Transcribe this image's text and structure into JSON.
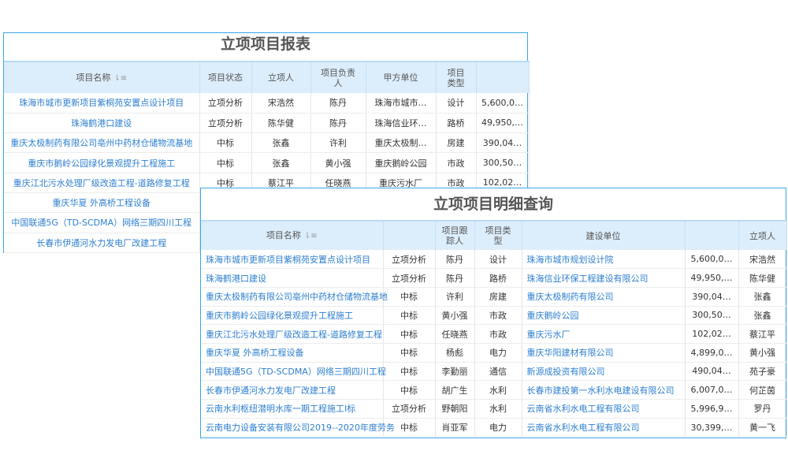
{
  "back": {
    "title": "立项项目报表",
    "headers": [
      "项目名称",
      "项目状态",
      "立项人",
      "项目负责人",
      "甲方单位",
      "项目类型",
      ""
    ],
    "rows": [
      [
        "珠海市城市更新项目紫桐苑安置点设计项目",
        "立项分析",
        "宋浩然",
        "陈丹",
        "珠海市城市…",
        "设计",
        "5,600,0…"
      ],
      [
        "珠海鹤港口建设",
        "立项分析",
        "陈华健",
        "陈丹",
        "珠海信业环…",
        "路桥",
        "49,950,…"
      ],
      [
        "重庆太极制药有限公司亳州中药材仓储物流基地",
        "中标",
        "张鑫",
        "许利",
        "重庆太极制…",
        "房建",
        "390,04…"
      ],
      [
        "重庆市鹅岭公园绿化景观提升工程施工",
        "中标",
        "张鑫",
        "黄小强",
        "重庆鹅岭公园",
        "市政",
        "300,50…"
      ],
      [
        "重庆江北污水处理厂级改造工程-道路修复工程",
        "中标",
        "蔡江平",
        "任晓燕",
        "重庆污水厂",
        "市政",
        "102,02…"
      ],
      [
        "重庆华夏 外高桥工程设备",
        "",
        "",
        "",
        "",
        "",
        ""
      ],
      [
        "中国联通5G（TD-SCDMA）网络三期四川工程",
        "",
        "",
        "",
        "",
        "",
        ""
      ],
      [
        "长春市伊通河水力发电厂改建工程",
        "",
        "",
        "",
        "",
        "",
        ""
      ]
    ]
  },
  "front": {
    "title": "立项项目明细查询",
    "headers": [
      "项目名称",
      "",
      "项目跟踪人",
      "项目类型",
      "建设单位",
      "",
      "立项人"
    ],
    "rows": [
      [
        "珠海市城市更新项目紫桐苑安置点设计项目",
        "立项分析",
        "陈丹",
        "设计",
        "珠海市城市规划设计院",
        "5,600,0…",
        "宋浩然"
      ],
      [
        "珠海鹤港口建设",
        "立项分析",
        "陈丹",
        "路桥",
        "珠海信业环保工程建设有限公司",
        "49,950,…",
        "陈华健"
      ],
      [
        "重庆太极制药有限公司亳州中药材仓储物流基地",
        "中标",
        "许利",
        "房建",
        "重庆太极制药有限公司",
        "390,04…",
        "张鑫"
      ],
      [
        "重庆市鹅岭公园绿化景观提升工程施工",
        "中标",
        "黄小强",
        "市政",
        "重庆鹅岭公园",
        "300,50…",
        "张鑫"
      ],
      [
        "重庆江北污水处理厂级改造工程-道路修复工程",
        "中标",
        "任晓燕",
        "市政",
        "重庆污水厂",
        "102,02…",
        "蔡江平"
      ],
      [
        "重庆华夏 外高桥工程设备",
        "中标",
        "杨彪",
        "电力",
        "重庆华阳建材有限公司",
        "4,899,0…",
        "黄小强"
      ],
      [
        "中国联通5G（TD-SCDMA）网络三期四川工程",
        "中标",
        "李勤丽",
        "通信",
        "新源成投资有限公司",
        "490,04…",
        "苑子豪"
      ],
      [
        "长春市伊通河水力发电厂改建工程",
        "中标",
        "胡广生",
        "水利",
        "长春市建投第一水利水电建设有限公司",
        "6,007,0…",
        "何芷茵"
      ],
      [
        "云南水利枢纽潜明水库一期工程施工I标",
        "立项分析",
        "野朝阳",
        "水利",
        "云南省水利水电工程有限公司",
        "5,996,9…",
        "罗丹"
      ],
      [
        "云南电力设备安装有限公司2019--2020年度劳务",
        "中标",
        "肖亚军",
        "电力",
        "云南省水利水电工程有限公司",
        "30,399,…",
        "黄一飞"
      ]
    ]
  },
  "sort_icon": "sort-icon",
  "colors": {
    "border": "#3aa7e8",
    "header_bg": "#dcedfb",
    "link": "#2d7fd0"
  }
}
